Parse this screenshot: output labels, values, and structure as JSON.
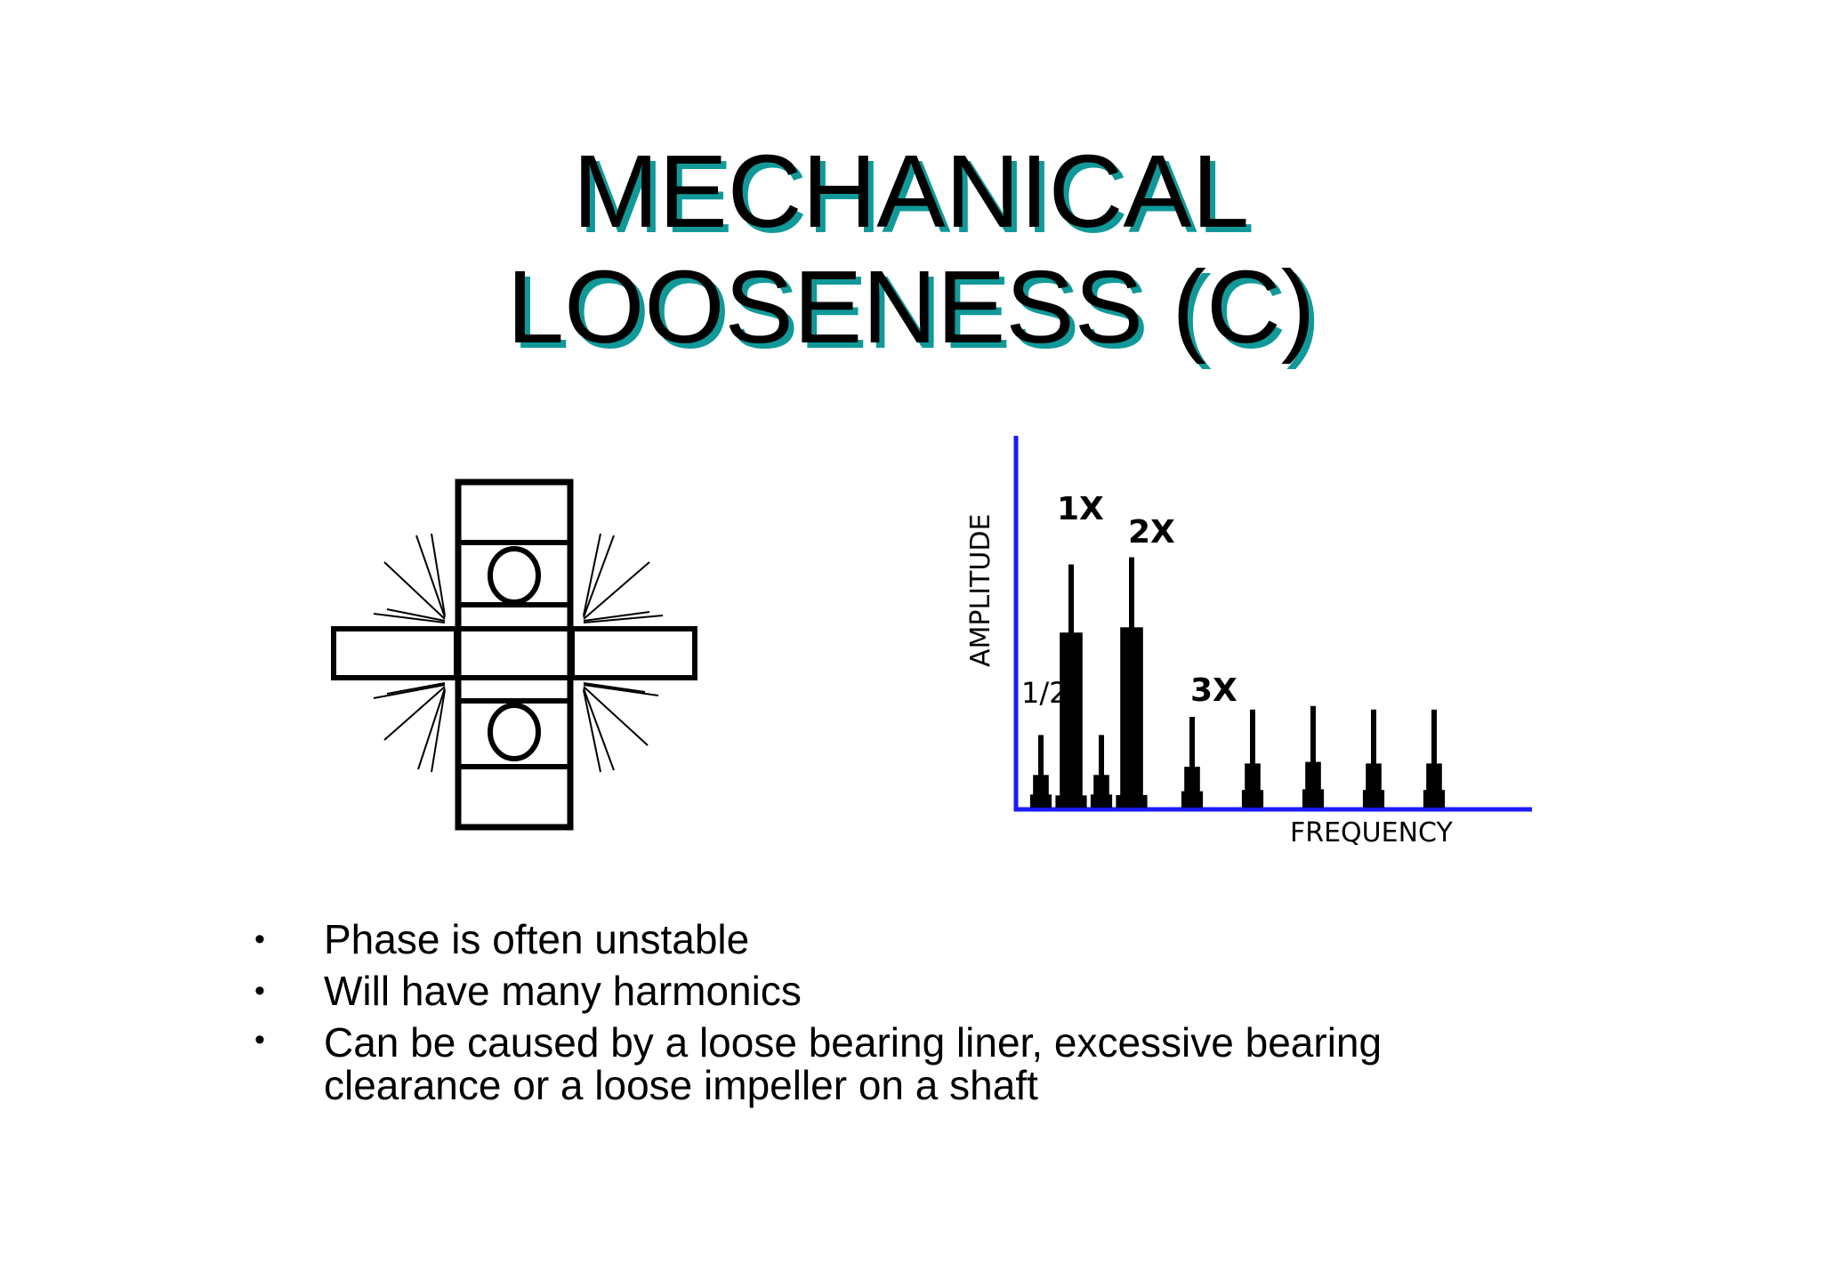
{
  "title": {
    "line1": "MECHANICAL",
    "line2": "LOOSENESS (C)"
  },
  "colors": {
    "title_shadow": "#119999",
    "axis": "#1a1aff",
    "ink": "#000000",
    "background": "#ffffff"
  },
  "diagram": {
    "icon": "bearing-shaft-vibration-icon"
  },
  "chart_data": {
    "type": "bar",
    "xlabel": "FREQUENCY",
    "ylabel": "AMPLITUDE",
    "annotations": [
      "1/2",
      "1X",
      "2X",
      "3X"
    ],
    "bars": [
      {
        "x": 0.5,
        "value": 0.2
      },
      {
        "x": 1.0,
        "value": 0.67
      },
      {
        "x": 1.5,
        "value": 0.2
      },
      {
        "x": 2.0,
        "value": 0.69
      },
      {
        "x": 3.0,
        "value": 0.25
      },
      {
        "x": 4.0,
        "value": 0.27
      },
      {
        "x": 5.0,
        "value": 0.28
      },
      {
        "x": 6.0,
        "value": 0.27
      },
      {
        "x": 7.0,
        "value": 0.27
      }
    ],
    "ylim": [
      0,
      1
    ],
    "grid": false
  },
  "bullets": [
    "Phase is often unstable",
    "Will have many harmonics",
    "Can be caused by a loose bearing liner, excessive bearing clearance or a loose impeller on a shaft"
  ],
  "bullet_symbol": "•"
}
